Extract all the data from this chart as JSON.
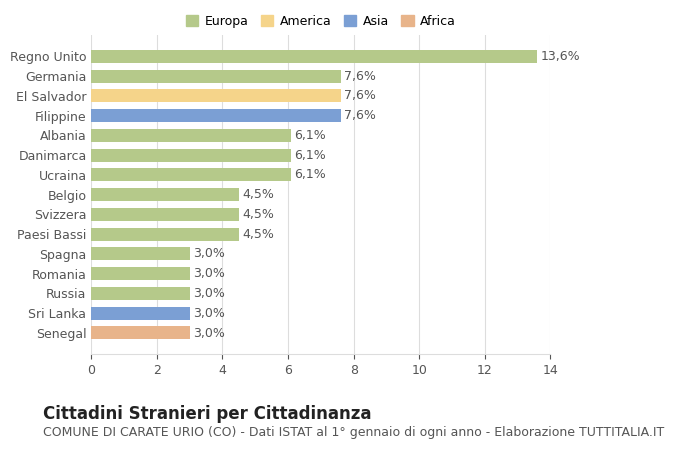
{
  "categories": [
    "Senegal",
    "Sri Lanka",
    "Russia",
    "Romania",
    "Spagna",
    "Paesi Bassi",
    "Svizzera",
    "Belgio",
    "Ucraina",
    "Danimarca",
    "Albania",
    "Filippine",
    "El Salvador",
    "Germania",
    "Regno Unito"
  ],
  "values": [
    3.0,
    3.0,
    3.0,
    3.0,
    3.0,
    4.5,
    4.5,
    4.5,
    6.1,
    6.1,
    6.1,
    7.6,
    7.6,
    7.6,
    13.6
  ],
  "labels": [
    "3,0%",
    "3,0%",
    "3,0%",
    "3,0%",
    "3,0%",
    "4,5%",
    "4,5%",
    "4,5%",
    "6,1%",
    "6,1%",
    "6,1%",
    "7,6%",
    "7,6%",
    "7,6%",
    "13,6%"
  ],
  "colors": [
    "#e8b48a",
    "#7b9fd4",
    "#b5c98a",
    "#b5c98a",
    "#b5c98a",
    "#b5c98a",
    "#b5c98a",
    "#b5c98a",
    "#b5c98a",
    "#b5c98a",
    "#b5c98a",
    "#7b9fd4",
    "#f5d48a",
    "#b5c98a",
    "#b5c98a"
  ],
  "continent_colors": {
    "Europa": "#b5c98a",
    "America": "#f5d48a",
    "Asia": "#7b9fd4",
    "Africa": "#e8b48a"
  },
  "title": "Cittadini Stranieri per Cittadinanza",
  "subtitle": "COMUNE DI CARATE URIO (CO) - Dati ISTAT al 1° gennaio di ogni anno - Elaborazione TUTTITALIA.IT",
  "xlim": [
    0,
    14
  ],
  "xticks": [
    0,
    2,
    4,
    6,
    8,
    10,
    12,
    14
  ],
  "background_color": "#ffffff",
  "bar_height": 0.65,
  "title_fontsize": 12,
  "subtitle_fontsize": 9,
  "label_fontsize": 9,
  "tick_fontsize": 9
}
